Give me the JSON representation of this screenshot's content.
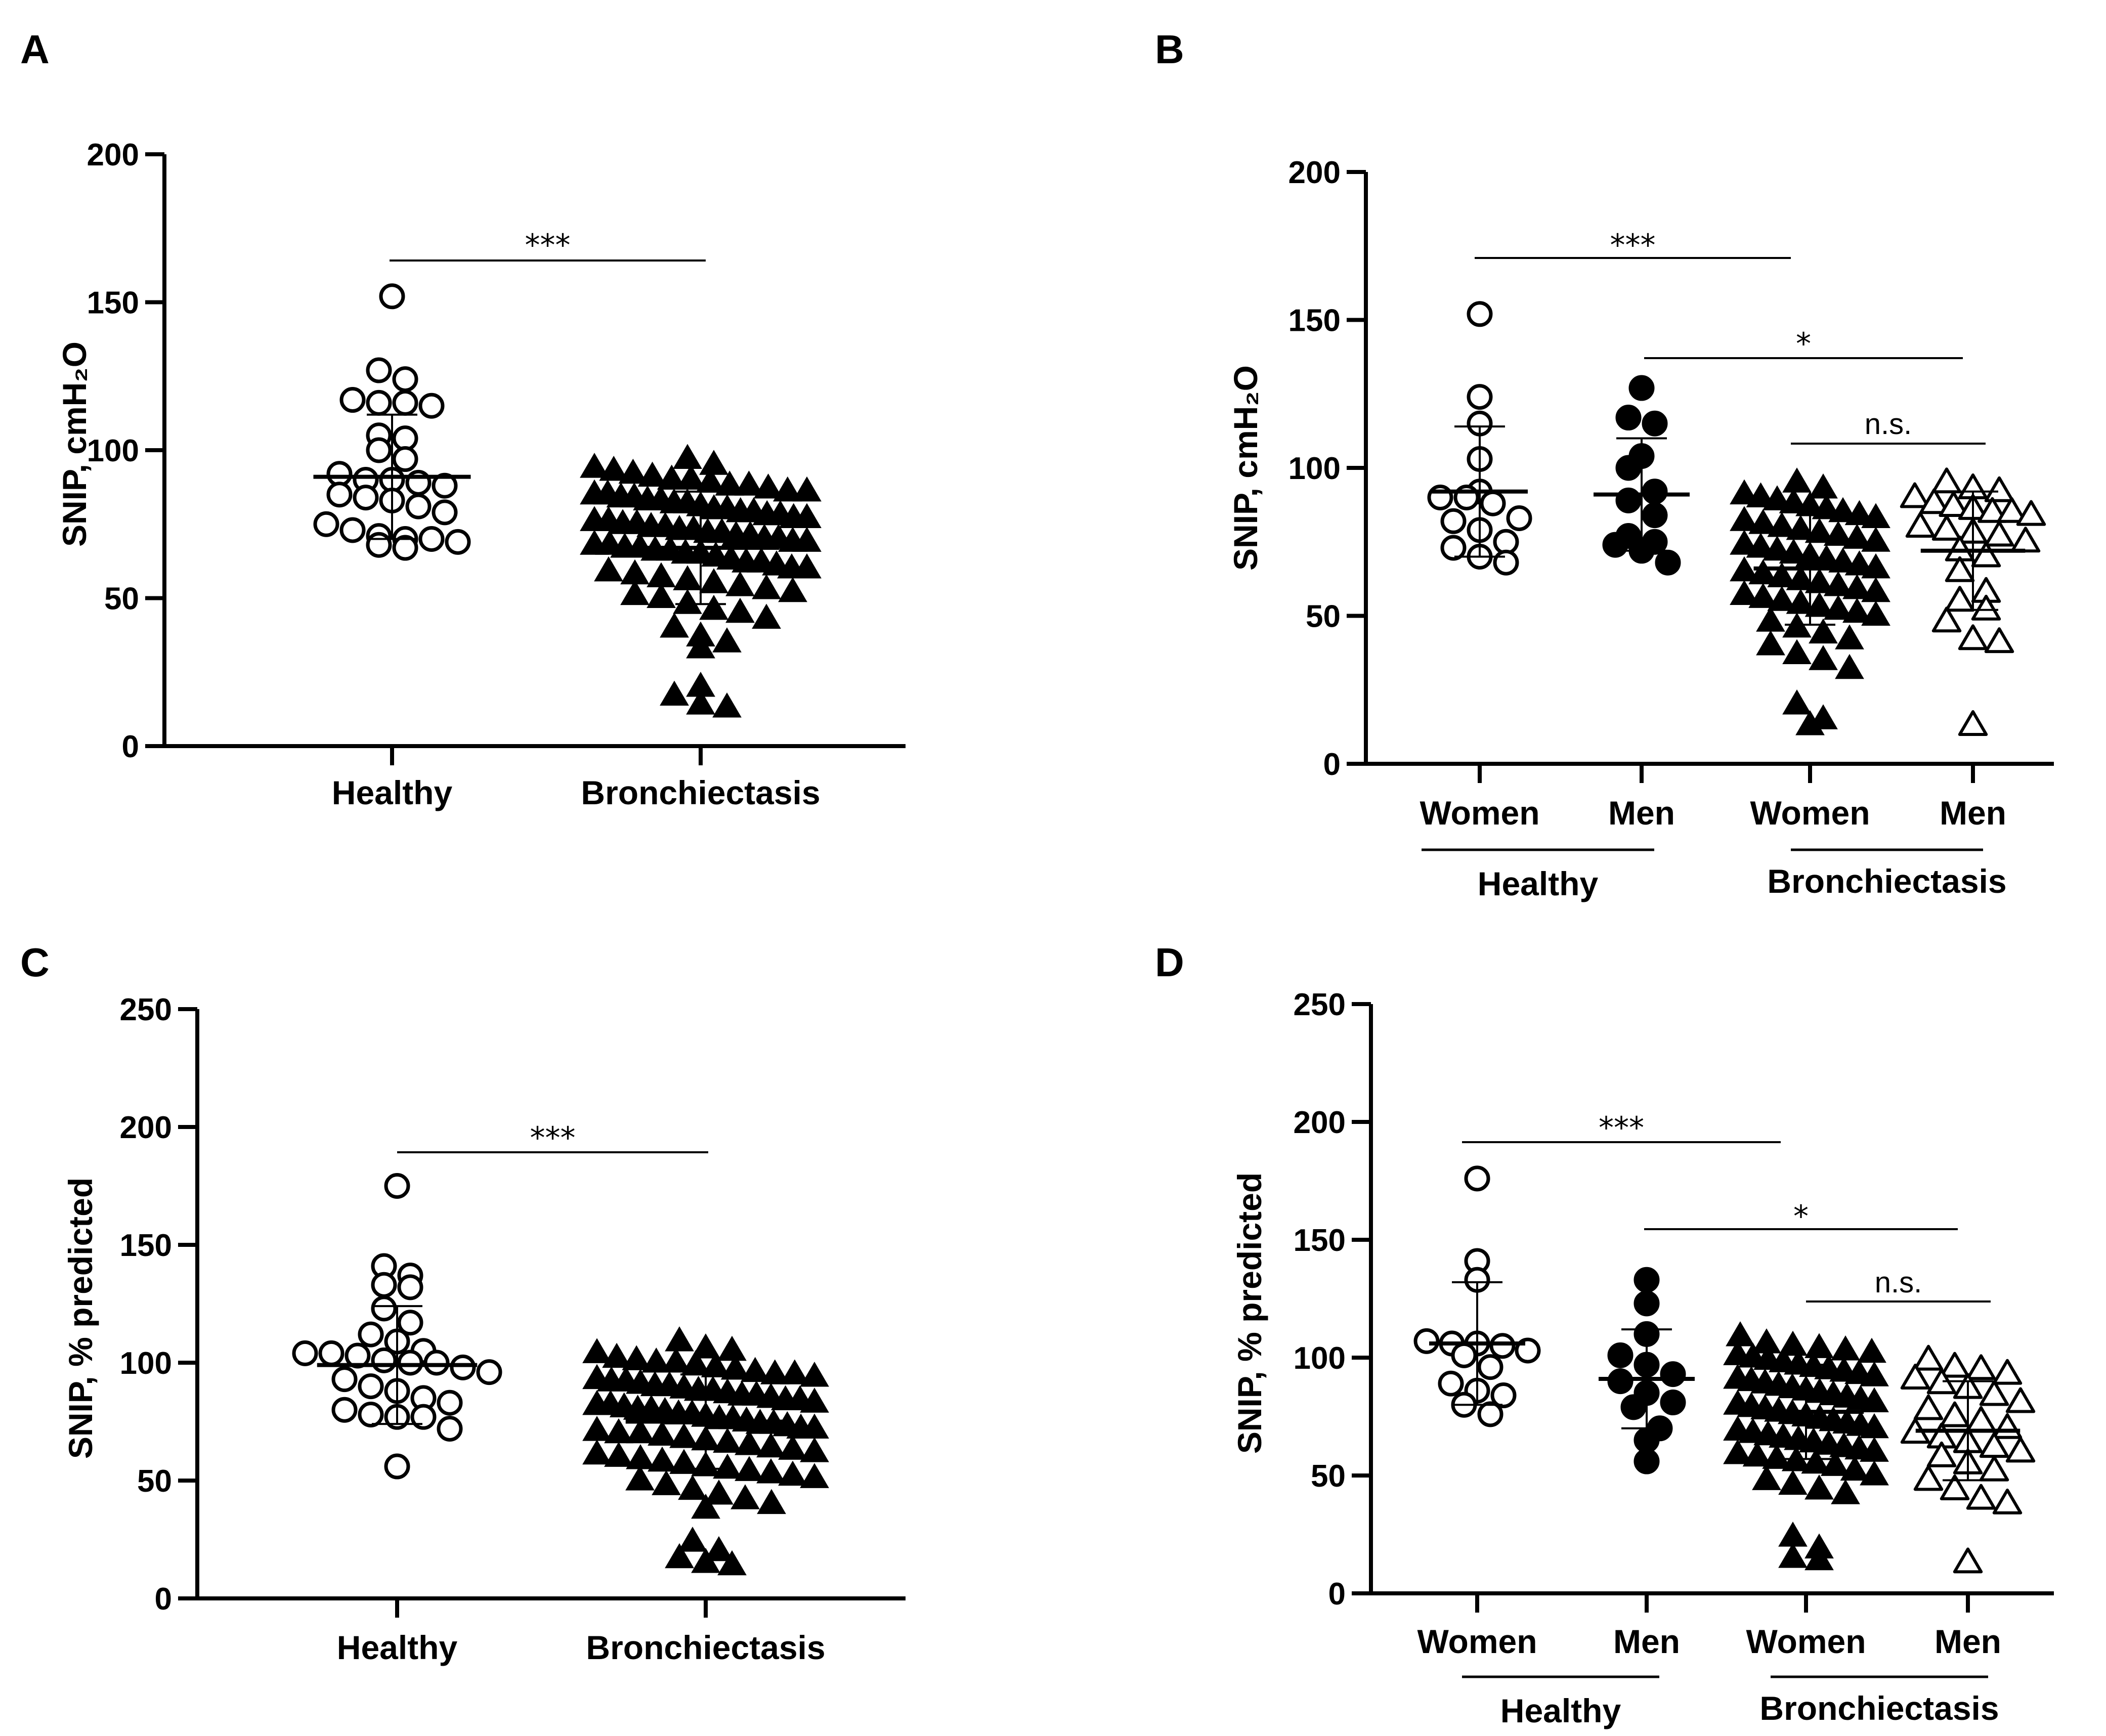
{
  "chart_data": [
    {
      "panel": "A",
      "type": "scatter",
      "ylabel": "SNIP, cmH₂O",
      "ylim": [
        0,
        200
      ],
      "yticks": [
        "0",
        "50",
        "100",
        "150",
        "200"
      ],
      "groups": [
        {
          "label": "Healthy",
          "marker": "circle-open",
          "mean": 91,
          "sd": 21,
          "values": [
            152,
            127,
            124,
            117,
            116,
            116,
            115,
            105,
            104,
            100,
            97,
            92,
            90,
            90,
            89,
            88,
            85,
            84,
            83,
            81,
            79,
            75,
            73,
            71,
            70,
            70,
            69,
            68,
            67
          ]
        },
        {
          "label": "Bronchiectasis",
          "marker": "triangle-filled",
          "mean": 67,
          "sd": 19,
          "values": [
            97,
            95,
            94,
            93,
            92,
            91,
            90,
            90,
            89,
            88,
            88,
            87,
            86,
            86,
            85,
            85,
            84,
            84,
            83,
            83,
            82,
            82,
            81,
            80,
            80,
            79,
            79,
            78,
            78,
            77,
            77,
            76,
            76,
            75,
            75,
            74,
            74,
            73,
            73,
            72,
            72,
            71,
            71,
            70,
            70,
            69,
            69,
            68,
            68,
            67,
            67,
            66,
            66,
            65,
            65,
            64,
            63,
            62,
            62,
            61,
            60,
            60,
            59,
            58,
            57,
            56,
            55,
            54,
            53,
            52,
            51,
            50,
            48,
            46,
            45,
            43,
            40,
            37,
            35,
            33,
            20,
            17,
            14,
            13
          ]
        }
      ],
      "x_labels": [
        "Healthy",
        "Bronchiectasis"
      ],
      "annotations": [
        {
          "text": "***",
          "from": "Healthy",
          "to": "Bronchiectasis"
        }
      ]
    },
    {
      "panel": "B",
      "type": "scatter",
      "ylabel": "SNIP, cmH₂O",
      "ylim": [
        0,
        200
      ],
      "yticks": [
        "0",
        "50",
        "100",
        "150",
        "200"
      ],
      "groups": [
        {
          "label": "Women",
          "marker": "circle-open",
          "mean": 92,
          "sd": 22,
          "values": [
            152,
            124,
            115,
            103,
            92,
            90,
            90,
            88,
            83,
            82,
            79,
            75,
            73,
            70,
            68
          ]
        },
        {
          "label": "Men",
          "marker": "circle-filled",
          "mean": 91,
          "sd": 19,
          "values": [
            127,
            117,
            115,
            104,
            100,
            92,
            89,
            84,
            77,
            75,
            74,
            72,
            68
          ]
        },
        {
          "label": "Women",
          "marker": "triangle-filled",
          "mean": 66,
          "sd": 19,
          "values": [
            95,
            93,
            91,
            90,
            89,
            88,
            87,
            86,
            85,
            84,
            83,
            82,
            81,
            80,
            79,
            78,
            77,
            76,
            75,
            74,
            73,
            72,
            71,
            70,
            69,
            68,
            67,
            66,
            65,
            64,
            63,
            62,
            61,
            60,
            59,
            58,
            57,
            56,
            55,
            54,
            53,
            52,
            51,
            50,
            48,
            46,
            44,
            42,
            40,
            37,
            35,
            32,
            20,
            15,
            13
          ]
        },
        {
          "label": "Men",
          "marker": "triangle-open",
          "mean": 72,
          "sd": 20,
          "values": [
            95,
            93,
            92,
            90,
            88,
            87,
            86,
            85,
            85,
            84,
            80,
            79,
            78,
            77,
            75,
            72,
            70,
            65,
            58,
            55,
            52,
            48,
            42,
            41,
            13
          ]
        }
      ],
      "x_labels": [
        "Women",
        "Men",
        "Women",
        "Men"
      ],
      "group_labels": [
        "Healthy",
        "Bronchiectasis"
      ],
      "annotations": [
        {
          "text": "***",
          "from": 0,
          "to": 2
        },
        {
          "text": "*",
          "from": 1,
          "to": 3
        },
        {
          "text": "n.s.",
          "from": 2,
          "to": 3
        }
      ]
    },
    {
      "panel": "C",
      "type": "scatter",
      "ylabel": "SNIP, % predicted",
      "ylim": [
        0,
        250
      ],
      "yticks": [
        "0",
        "50",
        "100",
        "150",
        "200",
        "250"
      ],
      "groups": [
        {
          "label": "Healthy",
          "marker": "circle-open",
          "mean": 99,
          "sd": 25,
          "values": [
            175,
            141,
            137,
            133,
            132,
            123,
            117,
            112,
            109,
            105,
            104,
            104,
            103,
            101,
            100,
            100,
            98,
            96,
            93,
            90,
            88,
            85,
            83,
            80,
            78,
            77,
            77,
            72,
            56
          ]
        },
        {
          "label": "Bronchiectasis",
          "marker": "triangle-filled",
          "mean": 75,
          "sd": 20,
          "values": [
            109,
            106,
            105,
            104,
            102,
            101,
            100,
            100,
            99,
            98,
            97,
            96,
            95,
            95,
            94,
            93,
            92,
            92,
            91,
            90,
            90,
            89,
            88,
            88,
            87,
            86,
            86,
            85,
            84,
            84,
            83,
            82,
            82,
            81,
            80,
            80,
            79,
            78,
            78,
            77,
            76,
            76,
            75,
            74,
            74,
            73,
            72,
            72,
            71,
            70,
            70,
            69,
            68,
            67,
            66,
            65,
            64,
            63,
            62,
            61,
            60,
            59,
            58,
            57,
            56,
            55,
            54,
            53,
            52,
            51,
            50,
            48,
            46,
            44,
            42,
            40,
            38,
            24,
            20,
            17,
            15,
            14
          ]
        }
      ],
      "x_labels": [
        "Healthy",
        "Bronchiectasis"
      ],
      "annotations": [
        {
          "text": "***",
          "from": "Healthy",
          "to": "Bronchiectasis"
        }
      ]
    },
    {
      "panel": "D",
      "type": "scatter",
      "ylabel": "SNIP, % predicted",
      "ylim": [
        0,
        250
      ],
      "yticks": [
        "0",
        "50",
        "100",
        "150",
        "200",
        "250"
      ],
      "groups": [
        {
          "label": "Women",
          "marker": "circle-open",
          "mean": 106,
          "sd": 26,
          "values": [
            176,
            141,
            133,
            107,
            106,
            106,
            105,
            103,
            101,
            96,
            89,
            86,
            84,
            80,
            76
          ]
        },
        {
          "label": "Men",
          "marker": "circle-filled",
          "mean": 91,
          "sd": 21,
          "values": [
            133,
            123,
            110,
            101,
            97,
            93,
            90,
            85,
            81,
            79,
            70,
            65,
            56
          ]
        },
        {
          "label": "Women",
          "marker": "triangle-filled",
          "mean": 77,
          "sd": 20,
          "values": [
            109,
            106,
            105,
            104,
            103,
            102,
            101,
            100,
            99,
            98,
            97,
            96,
            95,
            94,
            93,
            92,
            91,
            90,
            89,
            88,
            87,
            86,
            85,
            84,
            83,
            82,
            81,
            80,
            79,
            78,
            77,
            76,
            75,
            74,
            73,
            72,
            71,
            70,
            69,
            68,
            67,
            66,
            65,
            64,
            63,
            62,
            61,
            60,
            59,
            58,
            57,
            56,
            55,
            54,
            52,
            50,
            48,
            46,
            44,
            42,
            24,
            19,
            15,
            14
          ]
        },
        {
          "label": "Men",
          "marker": "triangle-open",
          "mean": 69,
          "sd": 21,
          "values": [
            99,
            96,
            95,
            93,
            91,
            89,
            87,
            84,
            81,
            78,
            75,
            73,
            70,
            68,
            66,
            64,
            62,
            60,
            58,
            55,
            52,
            48,
            44,
            40,
            38,
            13
          ]
        }
      ],
      "x_labels": [
        "Women",
        "Men",
        "Women",
        "Men"
      ],
      "group_labels": [
        "Healthy",
        "Bronchiectasis"
      ],
      "annotations": [
        {
          "text": "***",
          "from": 0,
          "to": 2
        },
        {
          "text": "*",
          "from": 1,
          "to": 3
        },
        {
          "text": "n.s.",
          "from": 2,
          "to": 3
        }
      ]
    }
  ]
}
